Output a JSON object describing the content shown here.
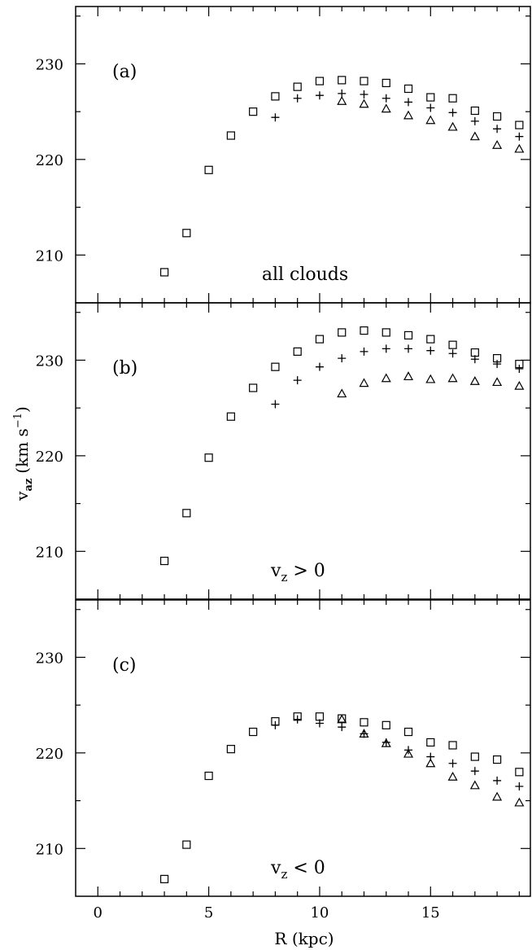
{
  "figure": {
    "xlabel": "R (kpc)",
    "ylabel_main": "v",
    "ylabel_sub": "az",
    "ylabel_units": "(km s",
    "ylabel_exp": "−1",
    "ylabel_close": ")"
  },
  "chart_data": [
    {
      "type": "scatter",
      "panel_label": "(a)",
      "annotation": "all clouds",
      "xlim": [
        -1,
        19.5
      ],
      "ylim": [
        205,
        236
      ],
      "x_ticks": [
        "0",
        "5",
        "10",
        "15"
      ],
      "y_ticks": [
        "210",
        "220",
        "230"
      ],
      "series": [
        {
          "marker": "square",
          "x": [
            3,
            4,
            5,
            6,
            7,
            8,
            9,
            10,
            11,
            12,
            13,
            14,
            15,
            16,
            17,
            18,
            19
          ],
          "values": [
            208.2,
            212.3,
            218.9,
            222.5,
            225,
            226.6,
            227.6,
            228.2,
            228.3,
            228.2,
            228,
            227.4,
            226.5,
            226.4,
            225.1,
            224.5,
            223.6
          ]
        },
        {
          "marker": "plus",
          "x": [
            8,
            9,
            10,
            11,
            12,
            13,
            14,
            15,
            16,
            17,
            18,
            19
          ],
          "values": [
            224.4,
            226.4,
            226.7,
            226.9,
            226.8,
            226.4,
            226,
            225.4,
            224.9,
            224,
            223.2,
            222.4
          ]
        },
        {
          "marker": "triangle",
          "x": [
            11,
            12,
            13,
            14,
            15,
            16,
            17,
            18,
            19
          ],
          "values": [
            226.1,
            225.8,
            225.3,
            224.6,
            224.1,
            223.4,
            222.4,
            221.5,
            221.1
          ]
        }
      ]
    },
    {
      "type": "scatter",
      "panel_label": "(b)",
      "annotation_main": "v",
      "annotation_sub": "z",
      "annotation_rest": " > 0",
      "xlim": [
        -1,
        19.5
      ],
      "ylim": [
        205,
        236
      ],
      "x_ticks": [
        "0",
        "5",
        "10",
        "15"
      ],
      "y_ticks": [
        "210",
        "220",
        "230"
      ],
      "series": [
        {
          "marker": "square",
          "x": [
            3,
            4,
            5,
            6,
            7,
            8,
            9,
            10,
            11,
            12,
            13,
            14,
            15,
            16,
            17,
            18,
            19
          ],
          "values": [
            209,
            214,
            219.8,
            224.1,
            227.1,
            229.3,
            230.9,
            232.2,
            232.9,
            233.1,
            232.9,
            232.6,
            232.2,
            231.6,
            230.8,
            230.2,
            229.6
          ]
        },
        {
          "marker": "plus",
          "x": [
            8,
            9,
            10,
            11,
            12,
            13,
            14,
            15,
            16,
            17,
            18,
            19
          ],
          "values": [
            225.4,
            227.9,
            229.3,
            230.2,
            230.9,
            231.2,
            231.2,
            231,
            230.7,
            230.1,
            229.6,
            229.1
          ]
        },
        {
          "marker": "triangle",
          "x": [
            11,
            12,
            13,
            14,
            15,
            16,
            17,
            18,
            19
          ],
          "values": [
            226.5,
            227.6,
            228.1,
            228.3,
            228,
            228.1,
            227.8,
            227.7,
            227.3
          ]
        }
      ]
    },
    {
      "type": "scatter",
      "panel_label": "(c)",
      "annotation_main": "v",
      "annotation_sub": "z",
      "annotation_rest": " < 0",
      "xlim": [
        -1,
        19.5
      ],
      "ylim": [
        205,
        236
      ],
      "x_ticks": [
        "0",
        "5",
        "10",
        "15"
      ],
      "y_ticks": [
        "210",
        "220",
        "230"
      ],
      "series": [
        {
          "marker": "square",
          "x": [
            3,
            4,
            5,
            6,
            7,
            8,
            9,
            10,
            11,
            12,
            13,
            14,
            15,
            16,
            17,
            18,
            19
          ],
          "values": [
            206.8,
            210.4,
            217.6,
            220.4,
            222.2,
            223.3,
            223.8,
            223.8,
            223.6,
            223.2,
            222.9,
            222.2,
            221.1,
            220.8,
            219.6,
            219.3,
            218
          ]
        },
        {
          "marker": "plus",
          "x": [
            8,
            9,
            10,
            11,
            12,
            13,
            14,
            15,
            16,
            17,
            18,
            19
          ],
          "values": [
            222.9,
            223.5,
            223.1,
            222.7,
            222,
            221.1,
            220.3,
            219.6,
            218.9,
            218.1,
            217.1,
            216.5
          ]
        },
        {
          "marker": "triangle",
          "x": [
            11,
            12,
            13,
            14,
            15,
            16,
            17,
            18,
            19
          ],
          "values": [
            223.5,
            222,
            221,
            219.9,
            218.9,
            217.5,
            216.6,
            215.4,
            214.8
          ]
        }
      ]
    }
  ]
}
